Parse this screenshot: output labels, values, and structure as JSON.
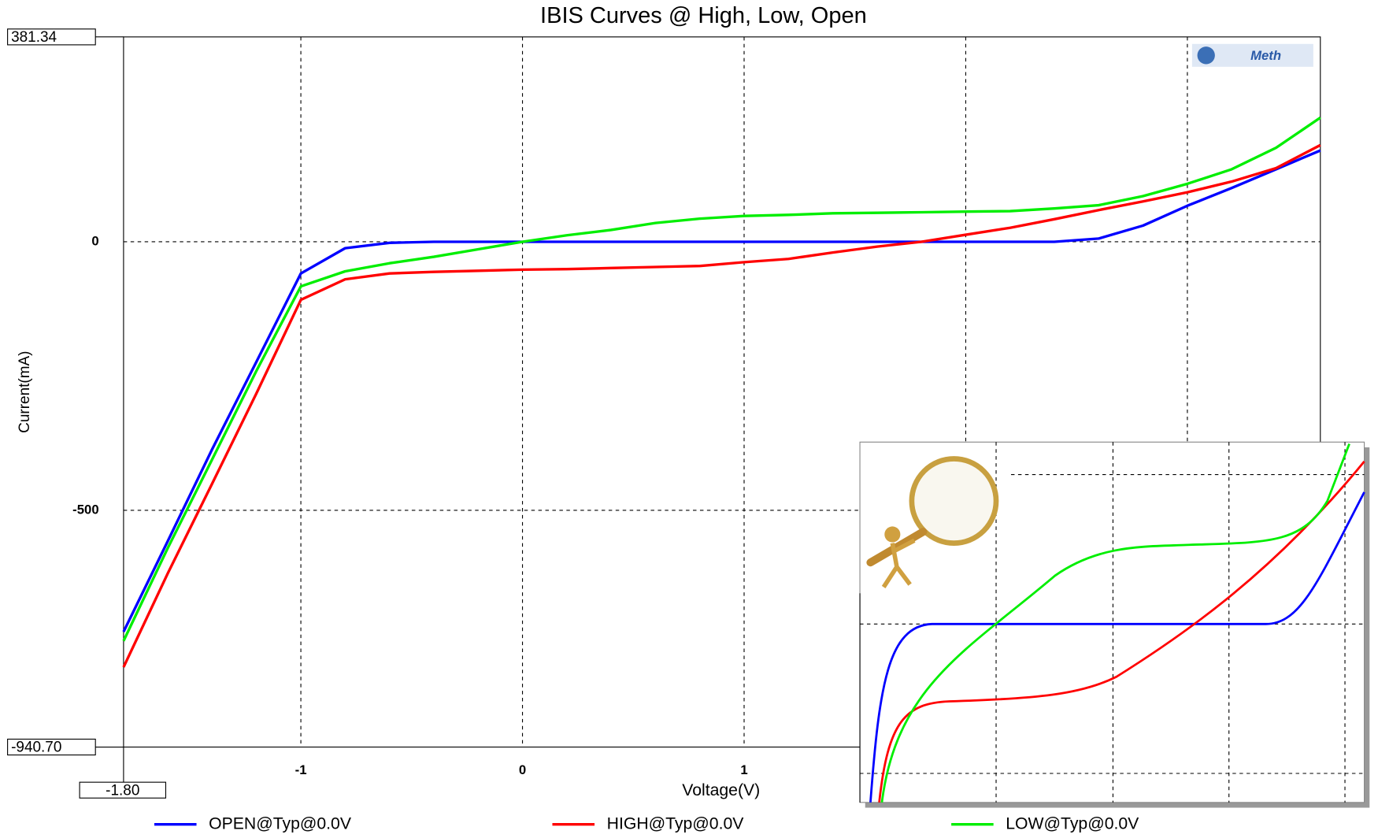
{
  "chart_data": {
    "type": "line",
    "title": "IBIS Curves @ High, Low, Open",
    "x_label": "Voltage(V)",
    "y_label": "Current(mA)",
    "logo": "Meth",
    "x": [
      -1.8,
      -1.6,
      -1.4,
      -1.2,
      -1.0,
      -0.8,
      -0.6,
      -0.4,
      -0.2,
      0,
      0.2,
      0.4,
      0.6,
      0.8,
      1.0,
      1.2,
      1.4,
      1.6,
      1.8,
      2.0,
      2.2,
      2.4,
      2.6,
      2.8,
      3.0,
      3.2,
      3.4,
      3.6
    ],
    "series": [
      {
        "name": "OPEN@Typ@0.0V",
        "color": "#0000ff",
        "values": [
          -726,
          -557,
          -386,
          -223,
          -59,
          -12,
          -2,
          0,
          0,
          0,
          0,
          0,
          0,
          0,
          0,
          0,
          0,
          0,
          0,
          0,
          0,
          0,
          6,
          30,
          67,
          100,
          135,
          170
        ]
      },
      {
        "name": "HIGH@Typ@0.0V",
        "color": "#ff0000",
        "values": [
          -792,
          -617,
          -450,
          -282,
          -108,
          -70,
          -59,
          -56,
          -54,
          -52,
          -51,
          -49,
          -47,
          -45,
          -38,
          -32,
          -20,
          -9,
          0,
          13,
          26,
          42,
          59,
          75,
          92,
          112,
          137,
          180
        ]
      },
      {
        "name": "LOW@Typ@0.0V",
        "color": "#00ee00",
        "values": [
          -743,
          -570,
          -405,
          -240,
          -83,
          -55,
          -40,
          -28,
          -14,
          0,
          12,
          22,
          35,
          43,
          48,
          50,
          53,
          54,
          55,
          56,
          57,
          62,
          68,
          85,
          108,
          135,
          175,
          231
        ]
      }
    ],
    "xlim": [
      -1.8,
      3.6
    ],
    "xticks": [
      {
        "value": -1.8,
        "label": "-1.80"
      },
      -1,
      0,
      1,
      2,
      3
    ],
    "ylim": [
      -940.7,
      381.34
    ],
    "yticks": [
      {
        "value": -940.7,
        "label": "-940.70"
      },
      -500,
      0,
      {
        "value": 381.34,
        "label": "381.34"
      }
    ],
    "grid": true,
    "legend": "bottom"
  }
}
